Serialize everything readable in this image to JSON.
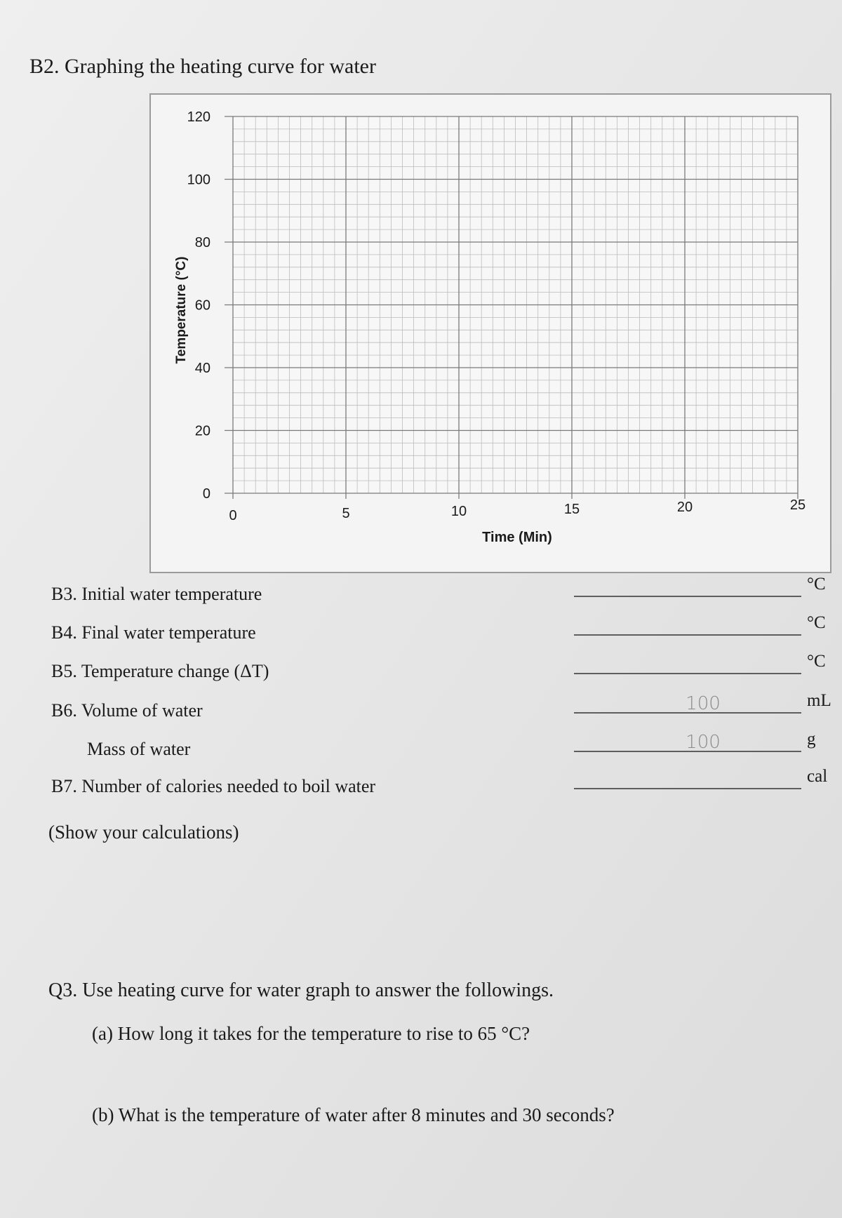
{
  "heading": "B2. Graphing the heating curve for water",
  "graph": {
    "y_label": "Temperature (°C)",
    "x_label": "Time (Min)",
    "xlim": [
      0,
      25
    ],
    "ylim": [
      0,
      120
    ],
    "xticks": [
      0,
      5,
      10,
      15,
      20,
      25
    ],
    "yticks": [
      0,
      20,
      40,
      60,
      80,
      100,
      120
    ]
  },
  "questions": [
    {
      "label": "B3. Initial water temperature",
      "unit": "°C"
    },
    {
      "label": "B4. Final water temperature",
      "unit": "°C"
    },
    {
      "label": "B5. Temperature change (ΔT)",
      "unit": "°C"
    },
    {
      "label": "B6. Volume of water",
      "answer": "100",
      "unit": "mL"
    },
    {
      "label": "Mass of water",
      "answer": "100",
      "unit": "g"
    },
    {
      "label": "B7. Number of calories needed to boil water",
      "unit": "cal"
    }
  ],
  "note": "(Show your calculations)",
  "q3": {
    "title": "Q3. Use heating curve for water graph to answer the followings.",
    "a": "(a) How long it takes for the temperature to rise to 65 °C?",
    "b": "(b) What is the temperature of water after 8 minutes and 30 seconds?"
  }
}
